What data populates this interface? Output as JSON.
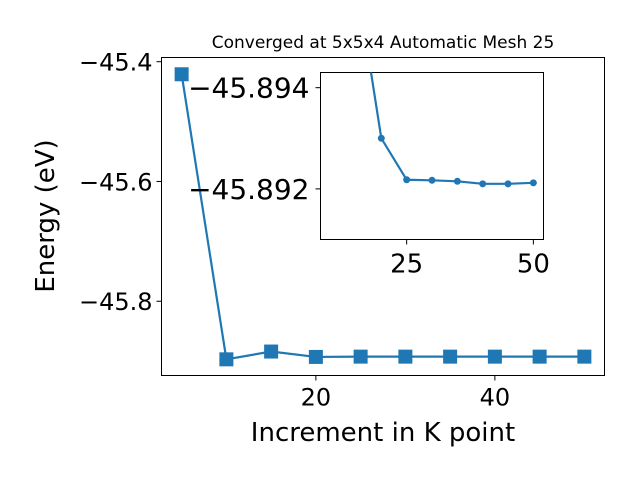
{
  "chart_data": [
    {
      "type": "line",
      "title": "Converged at 5x5x4 Automatic Mesh 25",
      "xlabel": "Increment in K point",
      "ylabel": "Energy (eV)",
      "x": [
        5,
        10,
        15,
        20,
        25,
        30,
        35,
        40,
        45,
        50
      ],
      "xlim": [
        2.75,
        52.25
      ],
      "ylim": [
        -45.924,
        -45.393
      ],
      "xticks": [
        20,
        40
      ],
      "xtick_labels": [
        "20",
        "40"
      ],
      "yticks": [
        -45.4,
        -45.6,
        -45.8
      ],
      "ytick_labels": [
        "−45.4",
        "−45.6",
        "−45.8"
      ],
      "grid": false,
      "marker": "square",
      "series": [
        {
          "values": [
            -45.421,
            -45.897,
            -45.884,
            -45.893,
            -45.8925,
            -45.8925,
            -45.8925,
            -45.8925,
            -45.8925,
            -45.8925
          ]
        }
      ]
    },
    {
      "type": "line",
      "title": "",
      "xlabel": "",
      "ylabel": "",
      "x": [
        20,
        25,
        30,
        35,
        40,
        45,
        50
      ],
      "xlim": [
        8,
        52
      ],
      "ylim": [
        -45.891,
        -45.8943
      ],
      "xticks": [
        25,
        50
      ],
      "xtick_labels": [
        "25",
        "50"
      ],
      "yticks": [
        -45.894,
        -45.892
      ],
      "ytick_labels": [
        "−45.894",
        "−45.892"
      ],
      "grid": false,
      "marker": "circle",
      "series": [
        {
          "values": [
            -45.893,
            -45.89218,
            -45.89217,
            -45.89215,
            -45.8921,
            -45.8921,
            -45.89212
          ],
          "lead_in": [
            -45.8946,
            17.5
          ]
        }
      ]
    }
  ],
  "colors": {
    "series": "#1f77b4",
    "axis": "#000000",
    "background": "#ffffff"
  }
}
